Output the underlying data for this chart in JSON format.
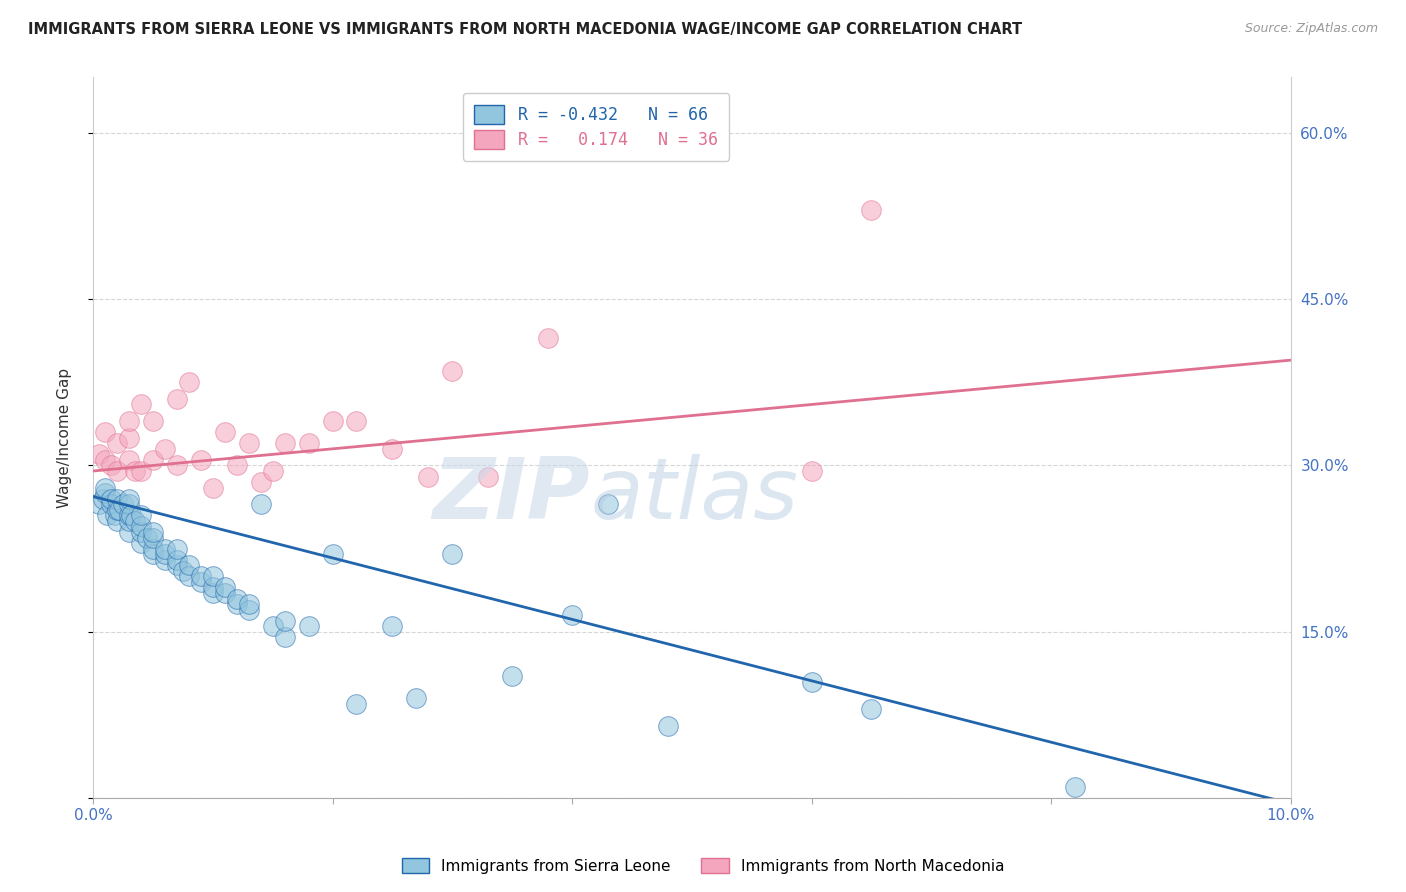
{
  "title": "IMMIGRANTS FROM SIERRA LEONE VS IMMIGRANTS FROM NORTH MACEDONIA WAGE/INCOME GAP CORRELATION CHART",
  "source": "Source: ZipAtlas.com",
  "ylabel": "Wage/Income Gap",
  "R1": -0.432,
  "N1": 66,
  "R2": 0.174,
  "N2": 36,
  "legend_label1": "Immigrants from Sierra Leone",
  "legend_label2": "Immigrants from North Macedonia",
  "color1": "#92c5de",
  "color2": "#f4a6be",
  "line_color1": "#2166ac",
  "line_color2": "#d6604d",
  "background_color": "#ffffff",
  "grid_color": "#cccccc",
  "watermark_zip": "ZIP",
  "watermark_atlas": "atlas",
  "xmin": 0.0,
  "xmax": 0.1,
  "ymin": 0.0,
  "ymax": 0.65,
  "ytick_vals": [
    0.0,
    0.15,
    0.3,
    0.45,
    0.6
  ],
  "ytick_labels_right": [
    "",
    "15.0%",
    "30.0%",
    "45.0%",
    "60.0%"
  ],
  "xtick_vals": [
    0.0,
    0.02,
    0.04,
    0.06,
    0.08,
    0.1
  ],
  "xtick_labels": [
    "0.0%",
    "",
    "",
    "",
    "",
    "10.0%"
  ],
  "sierra_leone_x": [
    0.0005,
    0.0008,
    0.001,
    0.001,
    0.0012,
    0.0015,
    0.0015,
    0.0018,
    0.002,
    0.002,
    0.002,
    0.0022,
    0.0025,
    0.003,
    0.003,
    0.003,
    0.003,
    0.003,
    0.0032,
    0.0035,
    0.004,
    0.004,
    0.004,
    0.004,
    0.0045,
    0.005,
    0.005,
    0.005,
    0.005,
    0.006,
    0.006,
    0.006,
    0.007,
    0.007,
    0.007,
    0.0075,
    0.008,
    0.008,
    0.009,
    0.009,
    0.01,
    0.01,
    0.01,
    0.011,
    0.011,
    0.012,
    0.012,
    0.013,
    0.013,
    0.014,
    0.015,
    0.016,
    0.016,
    0.018,
    0.02,
    0.022,
    0.025,
    0.027,
    0.03,
    0.035,
    0.04,
    0.043,
    0.048,
    0.06,
    0.065,
    0.082
  ],
  "sierra_leone_y": [
    0.265,
    0.27,
    0.275,
    0.28,
    0.255,
    0.265,
    0.27,
    0.255,
    0.25,
    0.26,
    0.27,
    0.26,
    0.265,
    0.24,
    0.25,
    0.255,
    0.265,
    0.27,
    0.255,
    0.25,
    0.23,
    0.24,
    0.245,
    0.255,
    0.235,
    0.22,
    0.225,
    0.235,
    0.24,
    0.215,
    0.22,
    0.225,
    0.21,
    0.215,
    0.225,
    0.205,
    0.2,
    0.21,
    0.195,
    0.2,
    0.185,
    0.19,
    0.2,
    0.185,
    0.19,
    0.175,
    0.18,
    0.17,
    0.175,
    0.265,
    0.155,
    0.145,
    0.16,
    0.155,
    0.22,
    0.085,
    0.155,
    0.09,
    0.22,
    0.11,
    0.165,
    0.265,
    0.065,
    0.105,
    0.08,
    0.01
  ],
  "north_macedonia_x": [
    0.0005,
    0.001,
    0.001,
    0.0015,
    0.002,
    0.002,
    0.003,
    0.003,
    0.003,
    0.0035,
    0.004,
    0.004,
    0.005,
    0.005,
    0.006,
    0.007,
    0.007,
    0.008,
    0.009,
    0.01,
    0.011,
    0.012,
    0.013,
    0.014,
    0.015,
    0.016,
    0.018,
    0.02,
    0.022,
    0.025,
    0.028,
    0.03,
    0.033,
    0.038,
    0.06,
    0.065
  ],
  "north_macedonia_y": [
    0.31,
    0.305,
    0.33,
    0.3,
    0.295,
    0.32,
    0.305,
    0.325,
    0.34,
    0.295,
    0.355,
    0.295,
    0.305,
    0.34,
    0.315,
    0.3,
    0.36,
    0.375,
    0.305,
    0.28,
    0.33,
    0.3,
    0.32,
    0.285,
    0.295,
    0.32,
    0.32,
    0.34,
    0.34,
    0.315,
    0.29,
    0.385,
    0.29,
    0.415,
    0.295,
    0.53
  ],
  "blue_line_x0": 0.0,
  "blue_line_y0": 0.272,
  "blue_line_x1": 0.1,
  "blue_line_y1": -0.005,
  "pink_line_x0": 0.0,
  "pink_line_y0": 0.295,
  "pink_line_x1": 0.1,
  "pink_line_y1": 0.395
}
